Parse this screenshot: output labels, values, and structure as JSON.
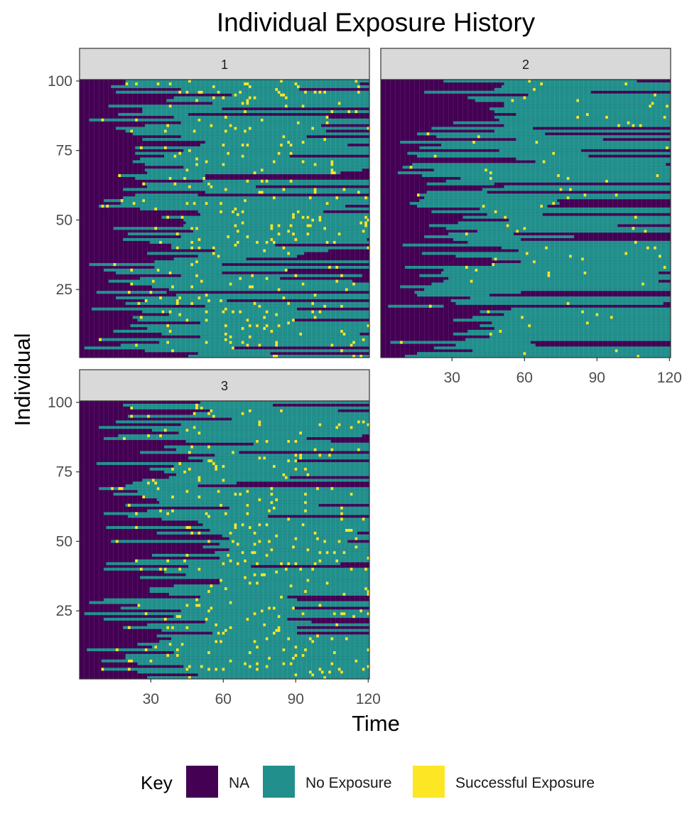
{
  "chart_data": {
    "type": "heatmap",
    "title": "Individual Exposure History",
    "xlabel": "Time",
    "ylabel": "Individual",
    "xlim": [
      1,
      120
    ],
    "ylim": [
      1,
      100
    ],
    "x_ticks": [
      30,
      60,
      90,
      120
    ],
    "y_ticks": [
      25,
      50,
      75,
      100
    ],
    "facets": [
      "1",
      "2",
      "3"
    ],
    "legend": {
      "title": "Key",
      "position": "bottom",
      "entries": [
        {
          "label": "NA",
          "color": "#440154"
        },
        {
          "label": "No Exposure",
          "color": "#21908C"
        },
        {
          "label": "Successful Exposure",
          "color": "#FDE725"
        }
      ]
    },
    "cell_values_note": "",
    "colors": {
      "na": "#440154",
      "no_exposure": "#21908C",
      "success": "#FDE725",
      "strip_bg": "#d9d9d9",
      "border": "#333333"
    }
  }
}
